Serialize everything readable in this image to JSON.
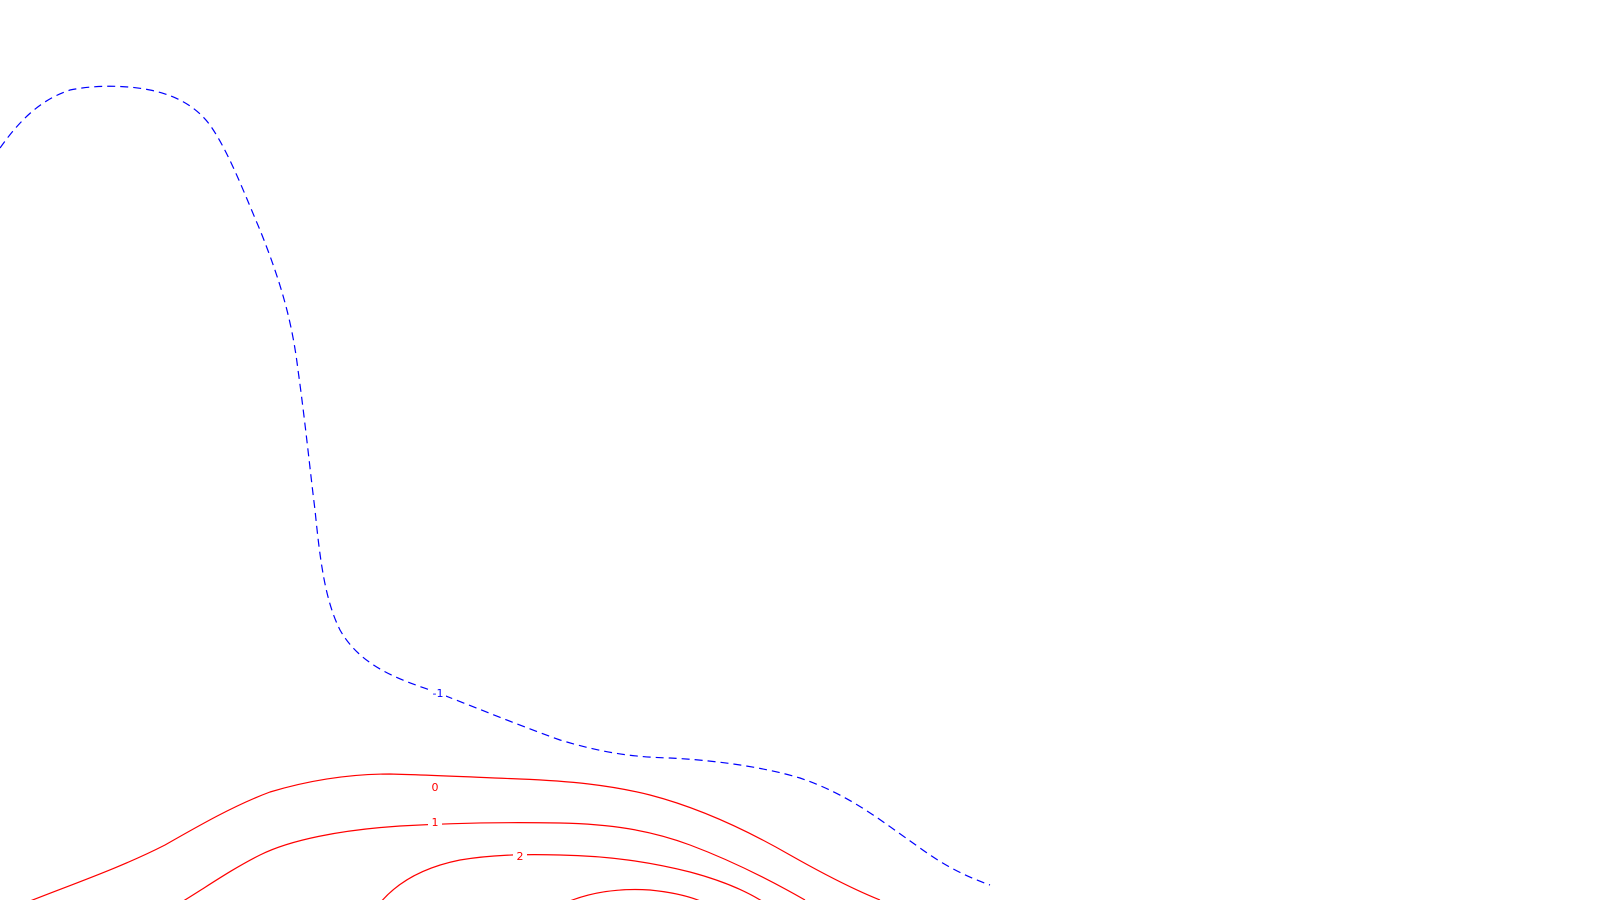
{
  "map": {
    "background_color": "#ffffff",
    "contours": [
      {
        "level_label": "-1",
        "color": "#0000ff",
        "line_style": "dashed"
      },
      {
        "level_label": "0",
        "color": "#ff0000",
        "line_style": "solid"
      },
      {
        "level_label": "1",
        "color": "#ff0000",
        "line_style": "solid"
      },
      {
        "level_label": "2",
        "color": "#ff0000",
        "line_style": "solid"
      },
      {
        "level_label": "",
        "color": "#ff0000",
        "line_style": "solid"
      }
    ]
  }
}
